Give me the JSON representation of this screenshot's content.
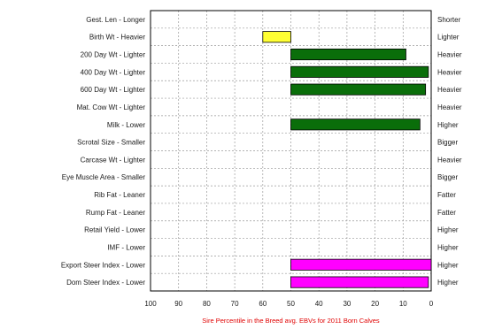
{
  "chart_data": {
    "type": "bar",
    "orientation": "horizontal",
    "categories_left": [
      "Gest. Len - Longer",
      "Birth Wt - Heavier",
      "200 Day Wt - Lighter",
      "400 Day Wt - Lighter",
      "600 Day Wt - Lighter",
      "Mat. Cow Wt - Lighter",
      "Milk - Lower",
      "Scrotal Size - Smaller",
      "Carcase Wt - Lighter",
      "Eye Muscle Area - Smaller",
      "Rib Fat - Leaner",
      "Rump Fat - Leaner",
      "Retail Yield - Lower",
      "IMF - Lower",
      "Export Steer Index - Lower",
      "Dom Steer Index - Lower"
    ],
    "categories_right": [
      "Shorter",
      "Lighter",
      "Heavier",
      "Heavier",
      "Heavier",
      "Heavier",
      "Higher",
      "Bigger",
      "Heavier",
      "Bigger",
      "Fatter",
      "Fatter",
      "Higher",
      "Higher",
      "Higher",
      "Higher"
    ],
    "bars": [
      {
        "row": 1,
        "from": 60,
        "to": 50,
        "color": "#ffff33"
      },
      {
        "row": 2,
        "from": 50,
        "to": 9,
        "color": "#0a6e0a"
      },
      {
        "row": 3,
        "from": 50,
        "to": 1,
        "color": "#0a6e0a"
      },
      {
        "row": 4,
        "from": 50,
        "to": 2,
        "color": "#0a6e0a"
      },
      {
        "row": 6,
        "from": 50,
        "to": 4,
        "color": "#0a6e0a"
      },
      {
        "row": 14,
        "from": 50,
        "to": 0,
        "color": "#ff00ff"
      },
      {
        "row": 15,
        "from": 50,
        "to": 1,
        "color": "#ff00ff"
      }
    ],
    "x_ticks": [
      "100",
      "90",
      "80",
      "70",
      "60",
      "50",
      "40",
      "30",
      "20",
      "10",
      "0"
    ],
    "xlim": [
      100,
      0
    ],
    "xlabel": "Sire Percentile in the Breed avg. EBVs for 2011 Born Calves",
    "grid": true
  }
}
